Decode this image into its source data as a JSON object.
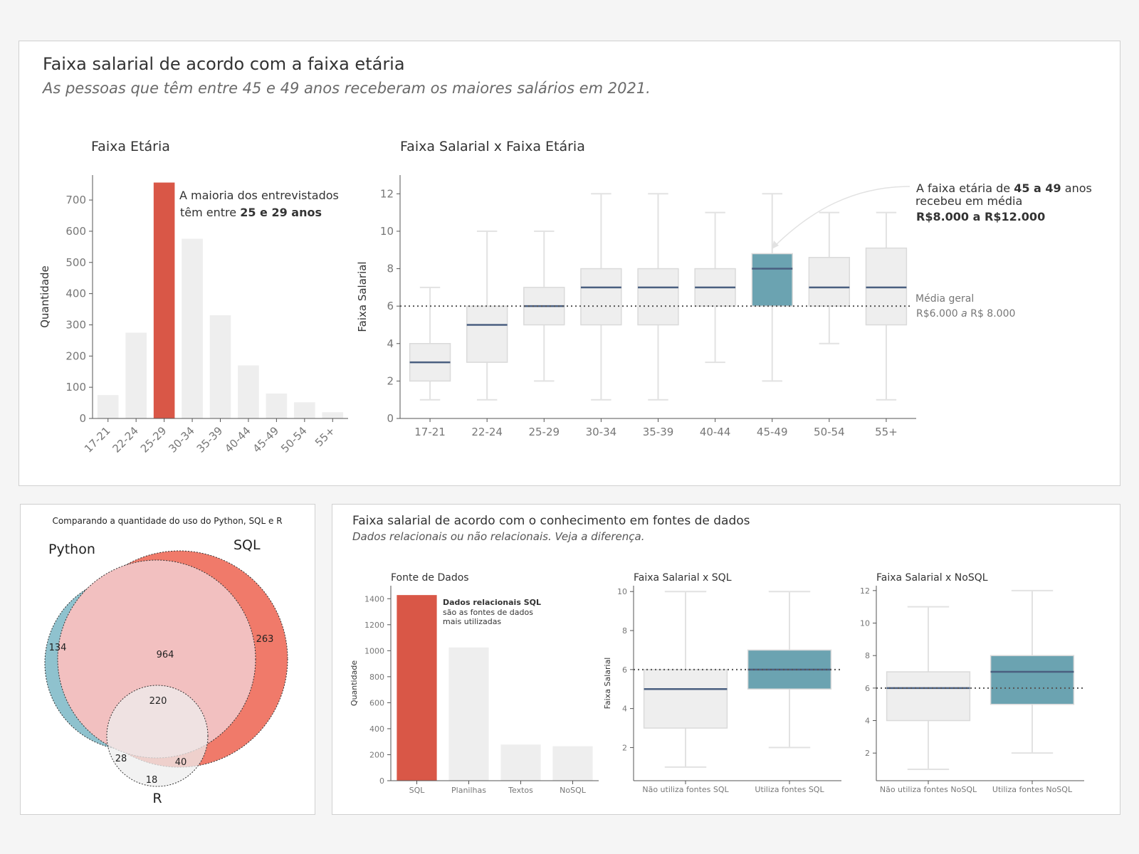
{
  "dashboard": {
    "title": "Faixa salarial de acordo com a faixa etária",
    "subtitle": "As pessoas que têm entre 45 e 49 anos receberam os maiores salários em 2021.",
    "bottom_title": "Faixa salarial de acordo com o conhecimento em fontes de dados",
    "bottom_subtitle": "Dados relacionais ou não relacionais. Veja a diferença."
  },
  "colors": {
    "highlight_red": "#d95747",
    "highlight_teal": "#6ba3b1",
    "muted_gray": "#eeeeee",
    "median_line": "#4a5f80",
    "venn_python": "#8fc2ce",
    "venn_sql": "#f07a6a",
    "venn_center": "#f2c0c0"
  },
  "annotations": {
    "age_bar_line1": "A maioria dos entrevistados",
    "age_bar_line2_pre": "têm entre ",
    "age_bar_line2_bold": "25 e 29 anos",
    "box_top_line1_pre": "A faixa etária de ",
    "box_top_line1_bold": "45 a 49",
    "box_top_line1_post": " anos",
    "box_top_line2": "recebeu em média",
    "box_top_line3": "R$8.000 a R$12.000",
    "mean_line1": "Média geral",
    "mean_line2_a": "R$6.000 ",
    "mean_line2_b": "a",
    "mean_line2_c": " R$ 8.000",
    "src_bar_bold": "Dados relacionais SQL",
    "src_bar_line2": "são as fontes de dados",
    "src_bar_line3": "mais utilizadas"
  },
  "chart_data": [
    {
      "id": "age",
      "type": "bar",
      "title": "Faixa Etária",
      "ylabel": "Quantidade",
      "xlabel": "",
      "categories": [
        "17-21",
        "22-24",
        "25-29",
        "30-34",
        "35-39",
        "40-44",
        "45-49",
        "50-54",
        "55+"
      ],
      "values": [
        75,
        275,
        756,
        576,
        331,
        170,
        80,
        52,
        20
      ],
      "highlight": "25-29",
      "ylim": [
        0,
        780
      ],
      "yticks": [
        0,
        100,
        200,
        300,
        400,
        500,
        600,
        700
      ]
    },
    {
      "id": "salary_age",
      "type": "box",
      "title": "Faixa Salarial x Faixa Etária",
      "ylabel": "Faixa Salarial",
      "xlabel": "",
      "categories": [
        "17-21",
        "22-24",
        "25-29",
        "30-34",
        "35-39",
        "40-44",
        "45-49",
        "50-54",
        "55+"
      ],
      "boxes": [
        {
          "min": 1,
          "q1": 2,
          "median": 3,
          "q3": 4,
          "max": 7
        },
        {
          "min": 1,
          "q1": 3,
          "median": 5,
          "q3": 6,
          "max": 10
        },
        {
          "min": 2,
          "q1": 5,
          "median": 6,
          "q3": 7,
          "max": 10
        },
        {
          "min": 1,
          "q1": 5,
          "median": 7,
          "q3": 8,
          "max": 12
        },
        {
          "min": 1,
          "q1": 5,
          "median": 7,
          "q3": 8,
          "max": 12
        },
        {
          "min": 3,
          "q1": 6,
          "median": 7,
          "q3": 8,
          "max": 11
        },
        {
          "min": 2,
          "q1": 6,
          "median": 8,
          "q3": 8.8,
          "max": 12
        },
        {
          "min": 4,
          "q1": 6,
          "median": 7,
          "q3": 8.6,
          "max": 11
        },
        {
          "min": 1,
          "q1": 5,
          "median": 7,
          "q3": 9.1,
          "max": 11
        }
      ],
      "highlight": "45-49",
      "mean_line": 6,
      "ylim": [
        0,
        13
      ],
      "yticks": [
        0,
        2,
        4,
        6,
        8,
        10,
        12
      ]
    },
    {
      "id": "venn",
      "type": "venn",
      "title": "Comparando a quantidade do uso do Python, SQL e R",
      "sets": [
        "Python",
        "SQL",
        "R"
      ],
      "regions": {
        "python_only": 134,
        "sql_only": 263,
        "python_sql": 964,
        "python_sql_r": 220,
        "python_r": 28,
        "sql_r": 40,
        "r_only": 18
      }
    },
    {
      "id": "sources",
      "type": "bar",
      "title": "Fonte de Dados",
      "ylabel": "Quantidade",
      "xlabel": "",
      "categories": [
        "SQL",
        "Planilhas",
        "Textos",
        "NoSQL"
      ],
      "values": [
        1428,
        1025,
        278,
        265
      ],
      "highlight": "SQL",
      "ylim": [
        0,
        1500
      ],
      "yticks": [
        0,
        200,
        400,
        600,
        800,
        1000,
        1200,
        1400
      ]
    },
    {
      "id": "salary_sql",
      "type": "box",
      "title": "Faixa Salarial x SQL",
      "ylabel": "Faixa Salarial",
      "xlabel": "",
      "categories": [
        "Não utiliza fontes SQL",
        "Utiliza fontes SQL"
      ],
      "boxes": [
        {
          "min": 1,
          "q1": 3,
          "median": 5,
          "q3": 6,
          "max": 10
        },
        {
          "min": 2,
          "q1": 5,
          "median": 6,
          "q3": 7,
          "max": 10
        }
      ],
      "highlight": "Utiliza fontes SQL",
      "mean_line": 6,
      "ylim": [
        0.3,
        10.3
      ],
      "yticks": [
        2,
        4,
        6,
        8,
        10
      ]
    },
    {
      "id": "salary_nosql",
      "type": "box",
      "title": "Faixa Salarial x NoSQL",
      "ylabel": "",
      "xlabel": "",
      "categories": [
        "Não utiliza fontes NoSQL",
        "Utiliza fontes NoSQL"
      ],
      "boxes": [
        {
          "min": 1,
          "q1": 4,
          "median": 6,
          "q3": 7,
          "max": 11
        },
        {
          "min": 2,
          "q1": 5,
          "median": 7,
          "q3": 8,
          "max": 12
        }
      ],
      "highlight": "Utiliza fontes NoSQL",
      "mean_line": 6,
      "ylim": [
        0.3,
        12.3
      ],
      "yticks": [
        2,
        4,
        6,
        8,
        10,
        12
      ]
    }
  ]
}
